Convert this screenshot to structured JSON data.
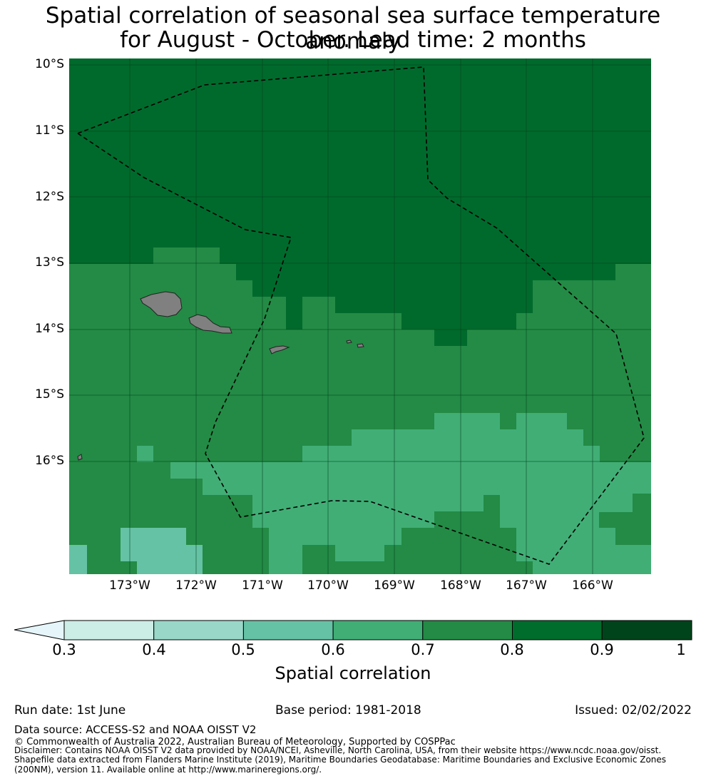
{
  "title_line1": "Spatial correlation of seasonal sea surface temperature anomaly",
  "title_line2": "for August - October. Lead time: 2 months",
  "map": {
    "lat_labels": [
      "10°S",
      "11°S",
      "12°S",
      "13°S",
      "14°S",
      "15°S",
      "16°S"
    ],
    "lon_labels": [
      "173°W",
      "172°W",
      "171°W",
      "170°W",
      "169°W",
      "168°W",
      "167°W",
      "166°W"
    ],
    "land_color": "#808080",
    "boundary_style": "black dashed line (maritime boundary)"
  },
  "colorbar": {
    "label": "Spatial correlation",
    "ticks": [
      "0.3",
      "0.4",
      "0.5",
      "0.6",
      "0.7",
      "0.8",
      "0.9",
      "1"
    ],
    "colors": [
      "#ccece6",
      "#99d8c9",
      "#66c2a4",
      "#41ae76",
      "#238b45",
      "#006d2c",
      "#00441b"
    ],
    "under_color": "#e5f5f9"
  },
  "footer": {
    "run_date": "Run date: 1st June",
    "base_period": "Base period: 1981-2018",
    "issued": "Issued: 02/02/2022",
    "data_source": "Data source: ACCESS-S2 and NOAA OISST V2",
    "copyright": "© Commonwealth of Australia 2022, Australian Bureau of Meteorology, Supported by COSPPac",
    "disclaimer1": "Disclaimer: Contains NOAA OISST V2 data provided by NOAA/NCEI, Asheville, North Carolina, USA, from their website https://www.ncdc.noaa.gov/oisst.",
    "disclaimer2": "Shapefile data extracted from Flanders Marine Institute (2019), Maritime Boundaries Geodatabase: Maritime Boundaries and Exclusive Economic Zones",
    "disclaimer3": "(200NM), version 11. Available online at http://www.marineregions.org/."
  }
}
